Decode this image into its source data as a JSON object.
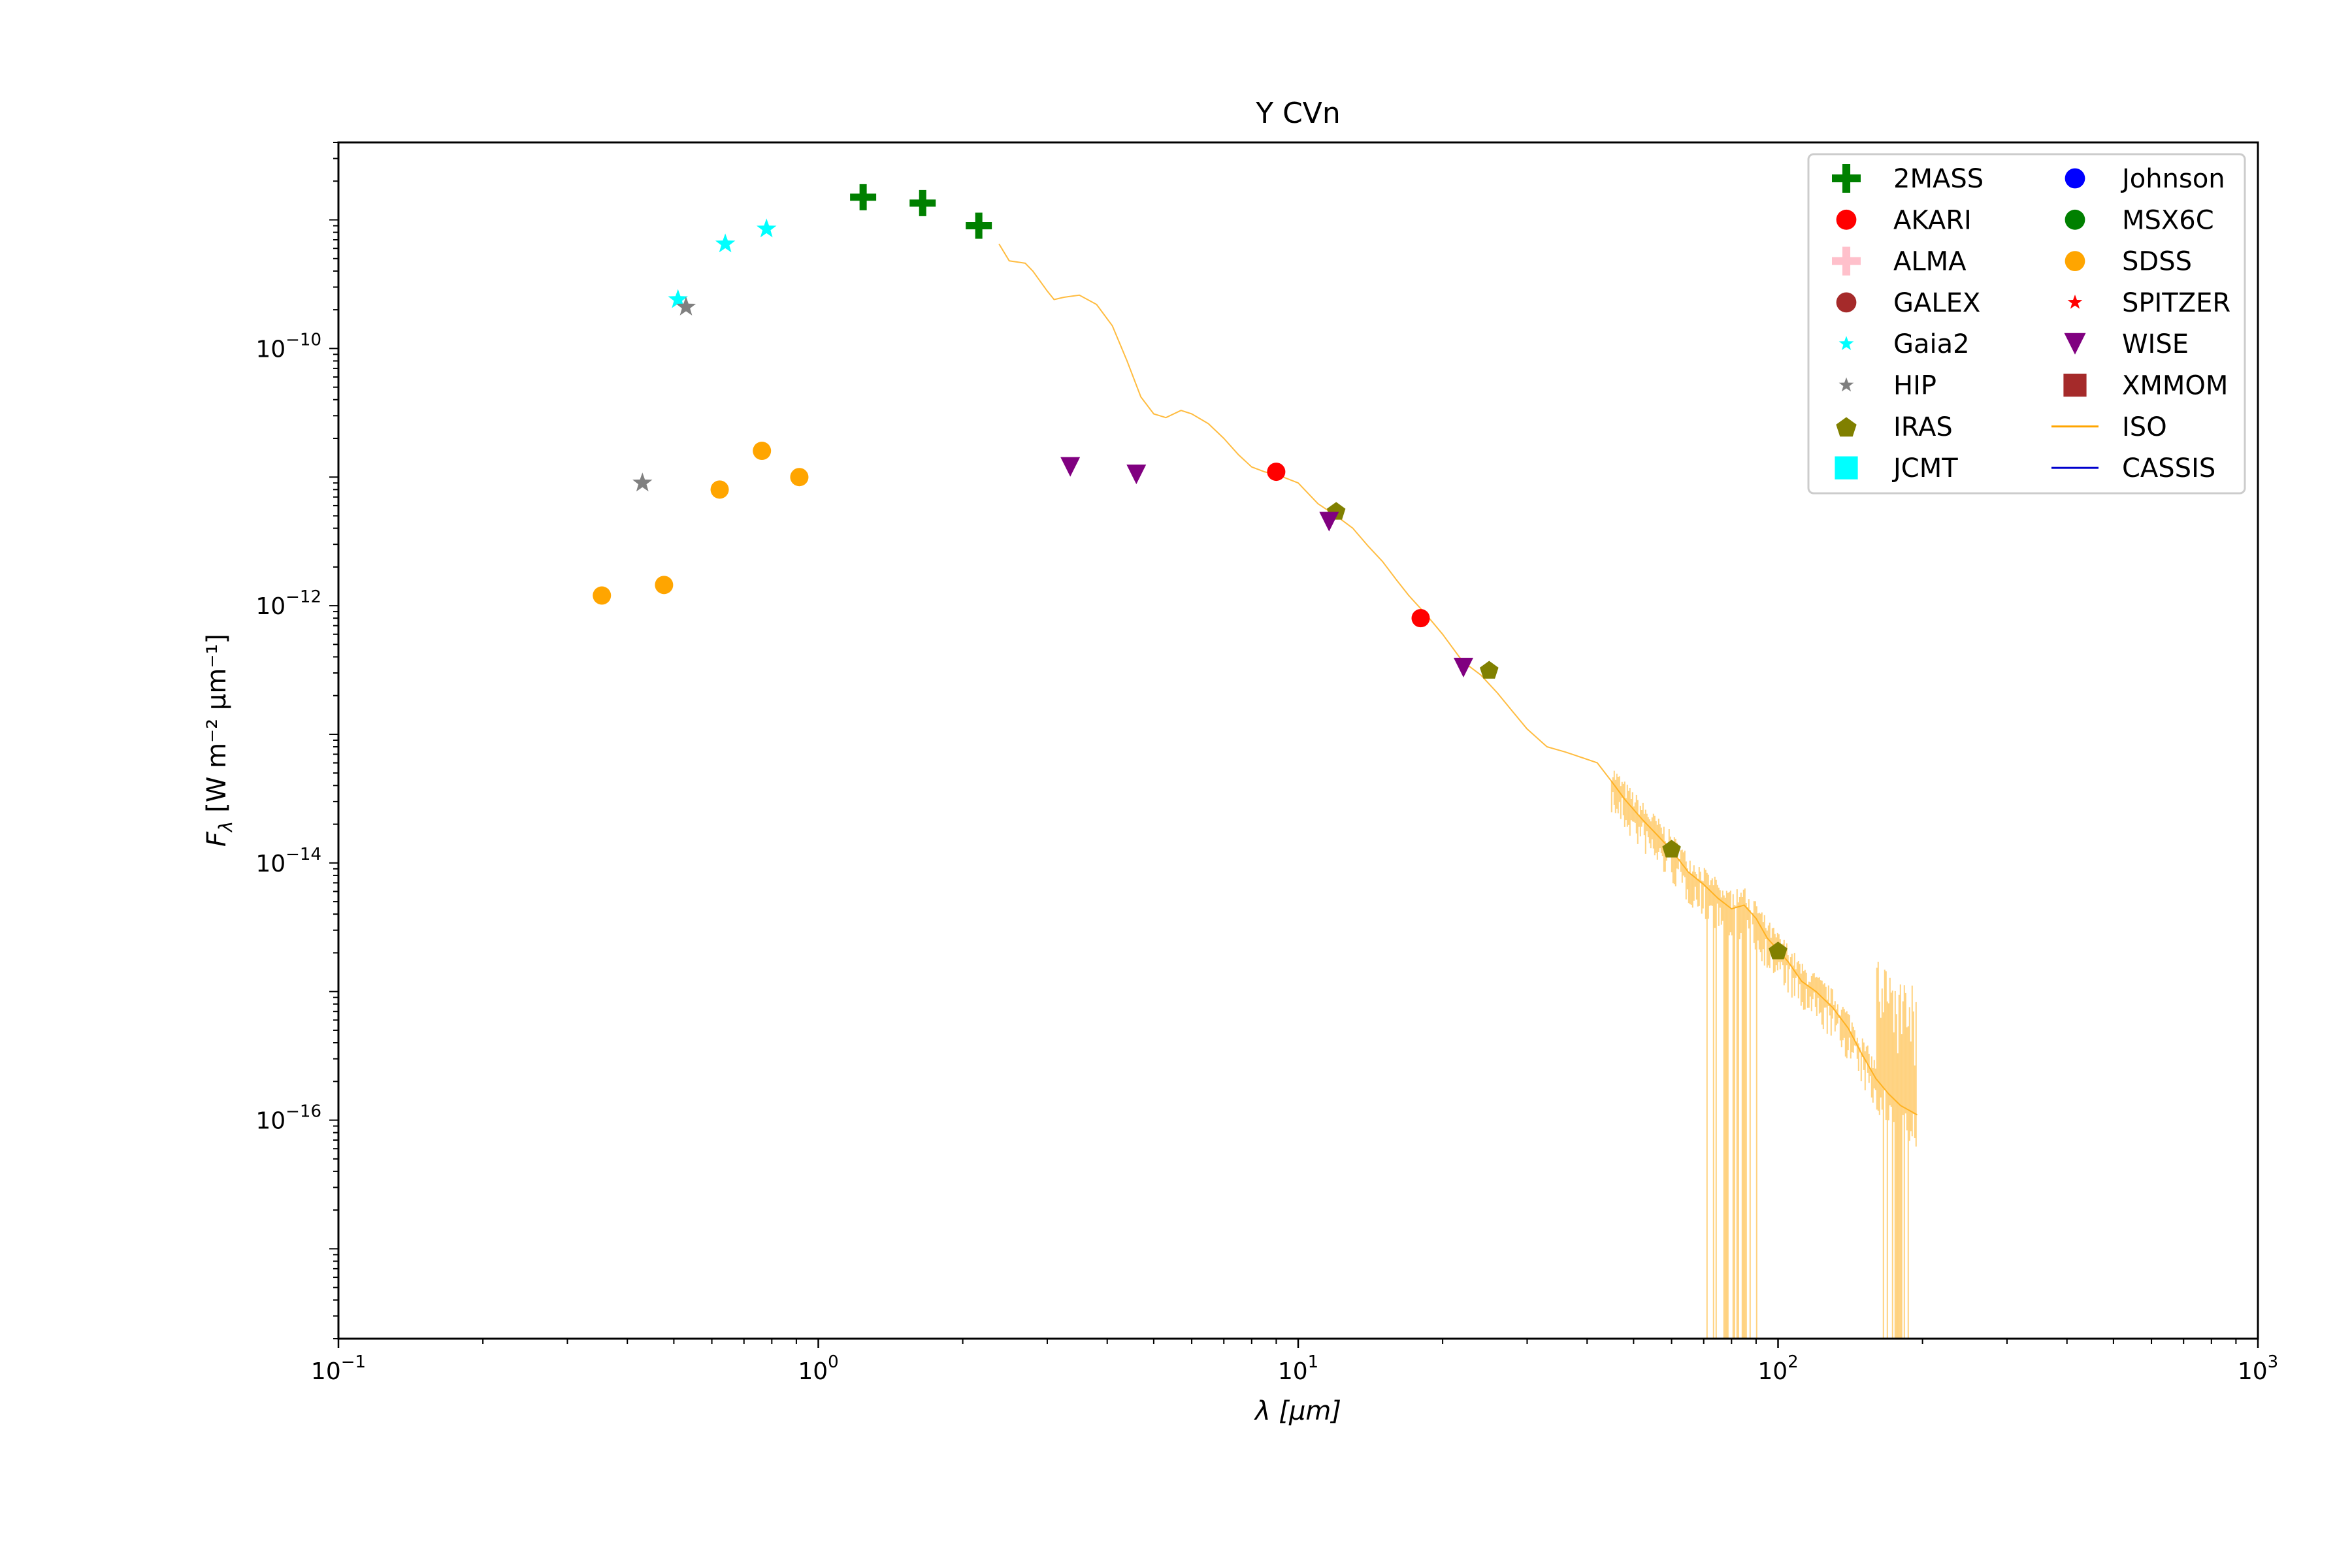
{
  "chart_data": {
    "type": "scatter",
    "title": "Y CVn",
    "xlabel": "λ [μm]",
    "ylabel": "Fλ [W m⁻² μm⁻¹]",
    "x_scale": "log",
    "y_scale": "log",
    "xlim": [
      0.1,
      1000
    ],
    "ylim": [
      2e-18,
      4e-09
    ],
    "x_ticks": [
      {
        "value": 0.1,
        "base": "10",
        "exp": "−1"
      },
      {
        "value": 1,
        "base": "10",
        "exp": "0"
      },
      {
        "value": 10,
        "base": "10",
        "exp": "1"
      },
      {
        "value": 100,
        "base": "10",
        "exp": "2"
      },
      {
        "value": 1000,
        "base": "10",
        "exp": "3"
      }
    ],
    "y_ticks": [
      {
        "value": 1e-10,
        "base": "10",
        "exp": "−10"
      },
      {
        "value": 1e-12,
        "base": "10",
        "exp": "−12"
      },
      {
        "value": 1e-14,
        "base": "10",
        "exp": "−14"
      },
      {
        "value": 1e-16,
        "base": "10",
        "exp": "−16"
      }
    ],
    "grid": false,
    "legend_position": "top-right",
    "series": [
      {
        "name": "2MASS",
        "marker": "plus",
        "color": "#008000",
        "points": [
          [
            1.24,
            1.5e-09
          ],
          [
            1.65,
            1.35e-09
          ],
          [
            2.16,
            9e-10
          ]
        ]
      },
      {
        "name": "AKARI",
        "marker": "circle",
        "color": "#ff0000",
        "points": [
          [
            9.0,
            1.1e-11
          ],
          [
            18.0,
            8e-13
          ]
        ]
      },
      {
        "name": "ALMA",
        "marker": "plus",
        "color": "#ffc0cb",
        "points": []
      },
      {
        "name": "GALEX",
        "marker": "circle",
        "color": "#a52a2a",
        "points": []
      },
      {
        "name": "Gaia2",
        "marker": "star",
        "color": "#00ffff",
        "points": [
          [
            0.51,
            2.4e-10
          ],
          [
            0.64,
            6.5e-10
          ],
          [
            0.78,
            8.5e-10
          ]
        ]
      },
      {
        "name": "HIP",
        "marker": "star",
        "color": "#808080",
        "points": [
          [
            0.43,
            9e-12
          ],
          [
            0.53,
            2.1e-10
          ]
        ]
      },
      {
        "name": "IRAS",
        "marker": "pentagon",
        "color": "#808000",
        "points": [
          [
            12.0,
            5.5e-12
          ],
          [
            25.0,
            3.2e-13
          ],
          [
            60.0,
            1.3e-14
          ],
          [
            100.0,
            2.1e-15
          ]
        ]
      },
      {
        "name": "JCMT",
        "marker": "square",
        "color": "#00ffff",
        "points": []
      },
      {
        "name": "Johnson",
        "marker": "circle",
        "color": "#0000ff",
        "points": []
      },
      {
        "name": "MSX6C",
        "marker": "circle",
        "color": "#008000",
        "points": []
      },
      {
        "name": "SDSS",
        "marker": "circle",
        "color": "#ffa500",
        "points": [
          [
            0.354,
            1.2e-12
          ],
          [
            0.477,
            1.45e-12
          ],
          [
            0.623,
            8e-12
          ],
          [
            0.763,
            1.6e-11
          ],
          [
            0.913,
            1e-11
          ]
        ]
      },
      {
        "name": "SPITZER",
        "marker": "star",
        "color": "#ff0000",
        "points": []
      },
      {
        "name": "WISE",
        "marker": "triangle-down",
        "color": "#800080",
        "points": [
          [
            3.35,
            1.2e-11
          ],
          [
            4.6,
            1.05e-11
          ],
          [
            11.6,
            4.5e-12
          ],
          [
            22.1,
            3.3e-13
          ]
        ]
      },
      {
        "name": "XMMOM",
        "marker": "square",
        "color": "#a52a2a",
        "points": []
      },
      {
        "name": "ISO",
        "marker": "line",
        "color": "#ffa500",
        "points": [
          [
            2.38,
            6.5e-10
          ],
          [
            2.5,
            4.8e-10
          ],
          [
            2.7,
            4.6e-10
          ],
          [
            2.8,
            4e-10
          ],
          [
            3.0,
            2.8e-10
          ],
          [
            3.1,
            2.4e-10
          ],
          [
            3.25,
            2.5e-10
          ],
          [
            3.5,
            2.6e-10
          ],
          [
            3.8,
            2.2e-10
          ],
          [
            4.1,
            1.5e-10
          ],
          [
            4.4,
            8e-11
          ],
          [
            4.7,
            4.2e-11
          ],
          [
            5.0,
            3.1e-11
          ],
          [
            5.3,
            2.9e-11
          ],
          [
            5.7,
            3.3e-11
          ],
          [
            6.0,
            3.1e-11
          ],
          [
            6.5,
            2.6e-11
          ],
          [
            7.0,
            2e-11
          ],
          [
            7.5,
            1.5e-11
          ],
          [
            8.0,
            1.2e-11
          ],
          [
            8.5,
            1.1e-11
          ],
          [
            9.0,
            1.05e-11
          ],
          [
            10.0,
            9e-12
          ],
          [
            11.0,
            6.2e-12
          ],
          [
            12.0,
            5e-12
          ],
          [
            13.0,
            4e-12
          ],
          [
            14.0,
            2.9e-12
          ],
          [
            15.0,
            2.2e-12
          ],
          [
            16.0,
            1.6e-12
          ],
          [
            17.0,
            1.2e-12
          ],
          [
            18.5,
            8.5e-13
          ],
          [
            20.0,
            6e-13
          ],
          [
            22.0,
            3.7e-13
          ],
          [
            24.0,
            2.9e-13
          ],
          [
            26.0,
            2.1e-13
          ],
          [
            28.0,
            1.5e-13
          ],
          [
            30.0,
            1.1e-13
          ],
          [
            33.0,
            8e-14
          ],
          [
            36.0,
            7.3e-14
          ],
          [
            39.0,
            6.6e-14
          ],
          [
            42.0,
            6e-14
          ],
          [
            45.0,
            4.3e-14
          ],
          [
            48.0,
            3.1e-14
          ],
          [
            52.0,
            2.2e-14
          ],
          [
            56.0,
            1.65e-14
          ],
          [
            60.0,
            1.25e-14
          ],
          [
            65.0,
            8.5e-15
          ],
          [
            70.0,
            6.8e-15
          ],
          [
            75.0,
            5.3e-15
          ],
          [
            80.0,
            4.4e-15
          ],
          [
            85.0,
            4.7e-15
          ],
          [
            90.0,
            3.7e-15
          ],
          [
            95.0,
            2.6e-15
          ],
          [
            100.0,
            2.1e-15
          ],
          [
            105.0,
            1.7e-15
          ],
          [
            112.0,
            1.2e-15
          ],
          [
            120.0,
            1e-15
          ],
          [
            130.0,
            7.5e-16
          ],
          [
            140.0,
            5.2e-16
          ],
          [
            150.0,
            3.2e-16
          ],
          [
            160.0,
            2.1e-16
          ],
          [
            170.0,
            1.6e-16
          ],
          [
            180.0,
            1.3e-16
          ],
          [
            195.0,
            1.1e-16
          ]
        ]
      },
      {
        "name": "CASSIS",
        "marker": "line",
        "color": "#0000cd",
        "points": []
      }
    ]
  }
}
